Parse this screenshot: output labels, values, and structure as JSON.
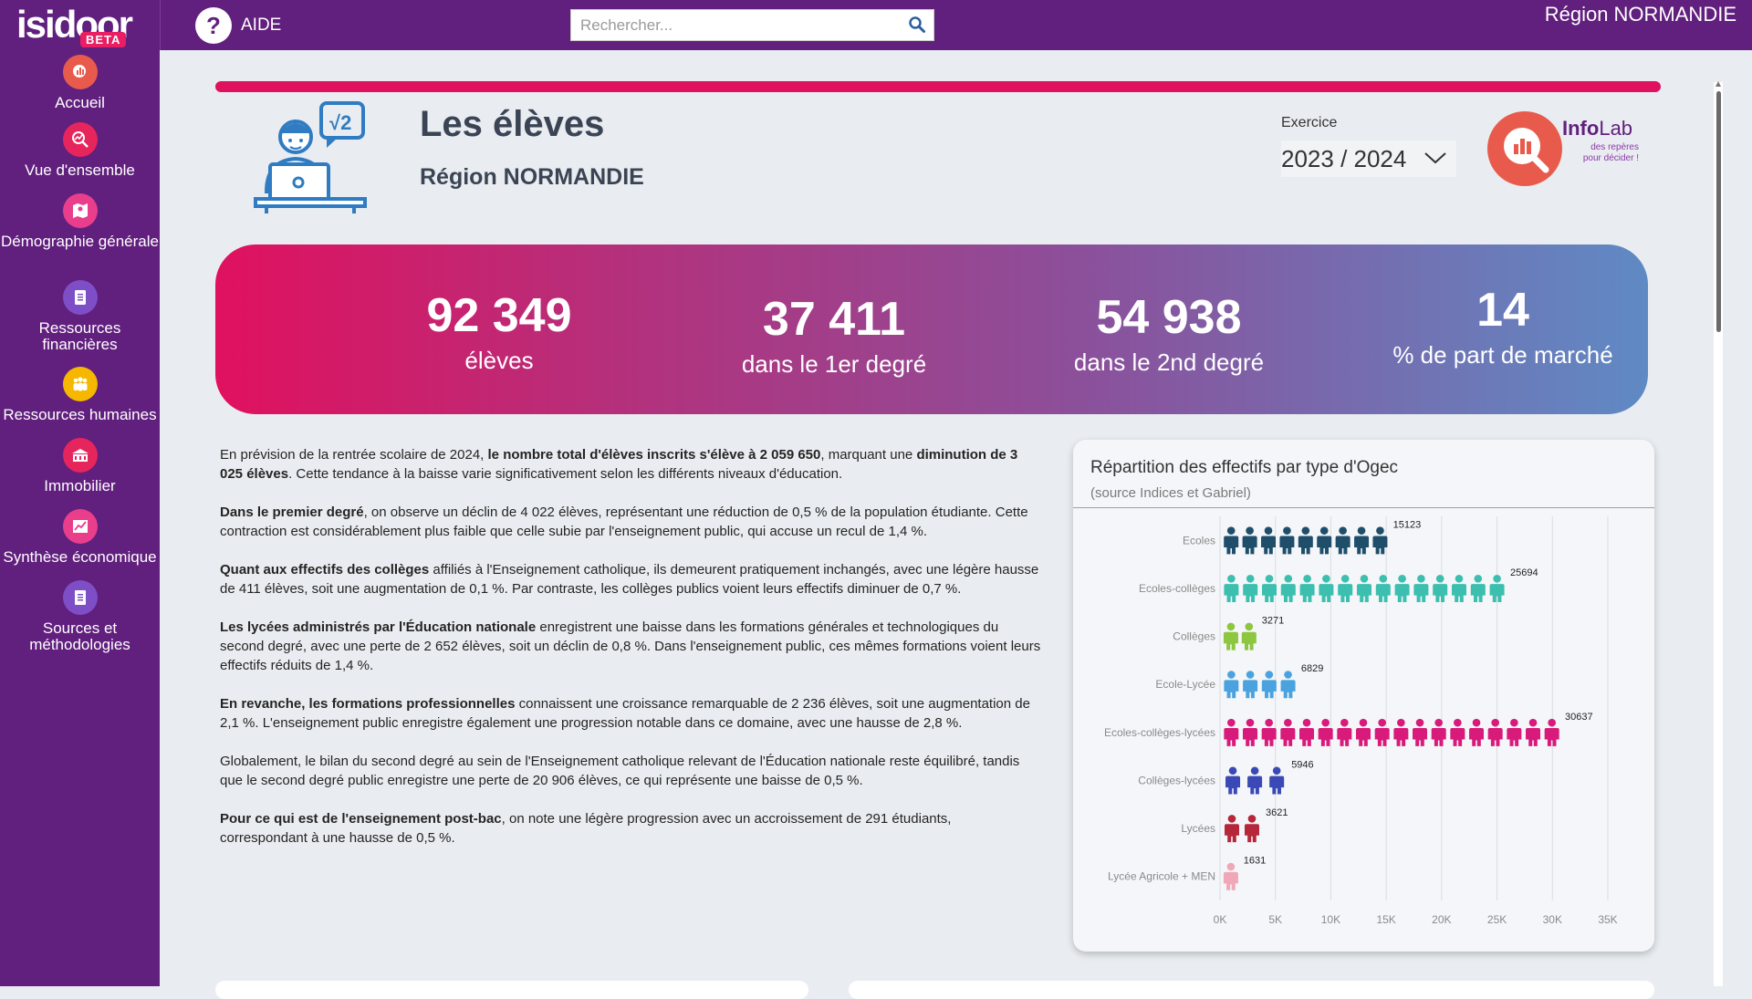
{
  "app": {
    "brand_main": "isidoor",
    "brand_badge": "BETA"
  },
  "topbar": {
    "help_label": "AIDE",
    "search_placeholder": "Rechercher...",
    "region": "Région NORMANDIE"
  },
  "sidebar": {
    "items": [
      {
        "label": "Accueil",
        "icon": "chart-icon",
        "color": "#e85b4c"
      },
      {
        "label": "Vue d'ensemble",
        "icon": "trend-icon",
        "color": "#e6255c"
      },
      {
        "label": "Démographie générale",
        "icon": "map-icon",
        "color": "#e83e8c"
      },
      {
        "label": "Ressources financières",
        "icon": "clipboard-icon",
        "color": "#7d4ec6"
      },
      {
        "label": "Ressources humaines",
        "icon": "people-icon",
        "color": "#f5b700"
      },
      {
        "label": "Immobilier",
        "icon": "building-icon",
        "color": "#e6255c"
      },
      {
        "label": "Synthèse économique",
        "icon": "bar-chart-icon",
        "color": "#e83e8c"
      },
      {
        "label": "Sources et méthodologies",
        "icon": "document-icon",
        "color": "#7d4ec6"
      }
    ]
  },
  "header": {
    "title": "Les élèves",
    "subtitle": "Région NORMANDIE",
    "exercise_label": "Exercice",
    "exercise_value": "2023 / 2024",
    "infolab_brand_a": "Info",
    "infolab_brand_b": "Lab",
    "infolab_tagline": "des repères pour décider !"
  },
  "kpis": [
    {
      "value": "92 349",
      "label": "élèves"
    },
    {
      "value": "37 411",
      "label": "dans le 1er degré"
    },
    {
      "value": "54 938",
      "label": "dans le 2nd degré"
    },
    {
      "value": "14",
      "label": "% de part de marché"
    }
  ],
  "analysis": {
    "p1": {
      "a": "En prévision de la rentrée scolaire de 2024, ",
      "b": "le nombre total d'élèves inscrits s'élève à 2 059 650",
      "c": ", marquant une ",
      "d": "diminution de 3 025 élèves",
      "e": ". Cette tendance à la baisse varie significativement selon les différents niveaux d'éducation."
    },
    "p2": {
      "a": "Dans le premier degré",
      "b": ", on observe un déclin de 4 022 élèves, représentant une réduction de 0,5 % de la population étudiante. Cette contraction est considérablement plus faible que celle subie par l'enseignement public, qui accuse un recul de 1,4 %."
    },
    "p3": {
      "a": "Quant aux effectifs des collèges",
      "b": " affiliés à l'Enseignement catholique, ils demeurent pratiquement inchangés, avec une légère hausse de 411 élèves, soit une augmentation de 0,1 %. Par contraste, les collèges publics voient leurs effectifs diminuer de 0,7 %."
    },
    "p4": {
      "a": "Les lycées administrés par l'Éducation nationale",
      "b": " enregistrent une baisse dans les formations générales et technologiques du second degré, avec une perte de 2 652 élèves, soit un déclin de 0,8 %. Dans l'enseignement public, ces mêmes formations voient leurs effectifs réduits de 1,4 %."
    },
    "p5": {
      "a": "En revanche, les formations professionnelles",
      "b": " connaissent une croissance remarquable de 2 236 élèves, soit une augmentation de 2,1 %. L'enseignement public enregistre également une progression notable dans ce domaine, avec une hausse de 2,8 %."
    },
    "p6": {
      "a": "Globalement, le bilan du second degré au sein de l'Enseignement catholique relevant de l'Éducation nationale reste équilibré, tandis que le second degré public enregistre une perte de 20 906 élèves, ce qui représente une baisse de 0,5 %."
    },
    "p7": {
      "a": "Pour ce qui est de l'enseignement post-bac",
      "b": ", on note une légère progression avec un accroissement de 291 étudiants, correspondant à une hausse de 0,5 %."
    }
  },
  "chart_data": {
    "type": "bar",
    "title": "Répartition des effectifs par type d'Ogec",
    "subtitle": "(source Indices et Gabriel)",
    "categories": [
      "Ecoles",
      "Ecoles-collèges",
      "Collèges",
      "Ecole-Lycée",
      "Ecoles-collèges-lycées",
      "Collèges-lycées",
      "Lycées",
      "Lycée Agricole + MEN"
    ],
    "values": [
      15123,
      25694,
      3271,
      6829,
      30637,
      5946,
      3621,
      1631
    ],
    "colors": [
      "#1f4e6b",
      "#3cbfae",
      "#8dc63f",
      "#4aa3df",
      "#d81b7a",
      "#3a49b5",
      "#b5283a",
      "#f0a7b8"
    ],
    "xticks": [
      "0K",
      "5K",
      "10K",
      "15K",
      "20K",
      "25K",
      "30K",
      "35K"
    ],
    "xlim": [
      0,
      35000
    ],
    "orientation": "horizontal",
    "mark": "person-icon"
  }
}
